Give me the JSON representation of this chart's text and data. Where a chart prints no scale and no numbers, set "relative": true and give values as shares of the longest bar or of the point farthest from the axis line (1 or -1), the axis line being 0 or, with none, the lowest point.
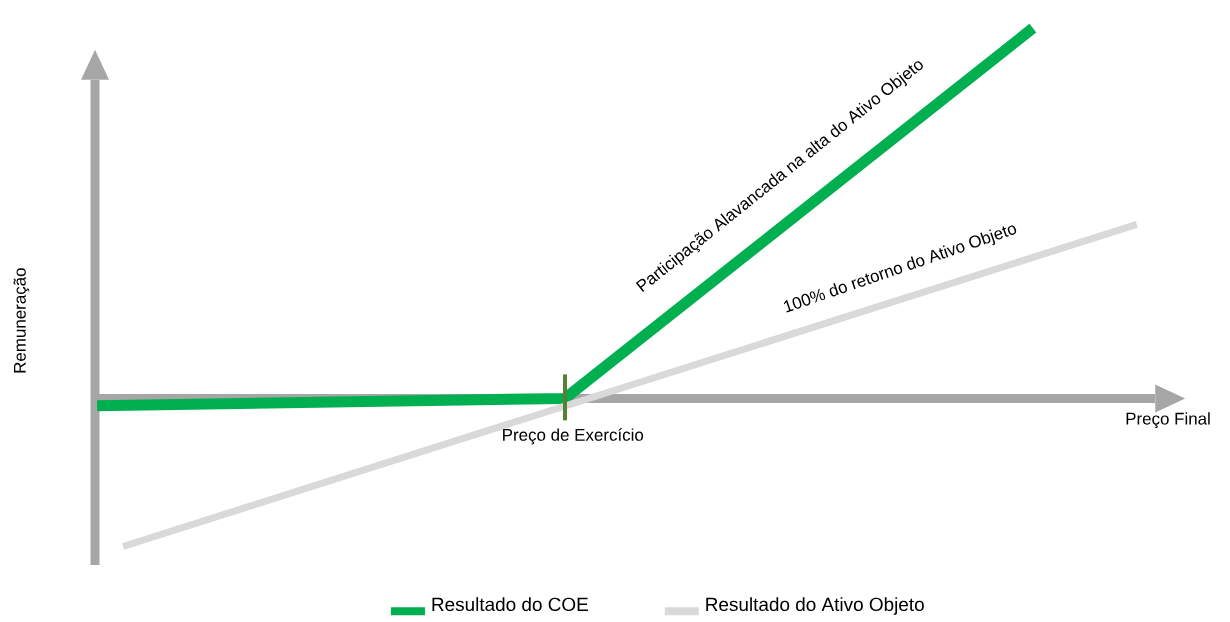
{
  "chart_data": {
    "type": "line",
    "relative": true,
    "xlabel": "Preço Final",
    "ylabel": "Remuneração",
    "categories": [
      null,
      null,
      null,
      null,
      null,
      null,
      null,
      null,
      null,
      null,
      null,
      null,
      null,
      null,
      null,
      null,
      null,
      null,
      null,
      null,
      null,
      null,
      null,
      null,
      null,
      null,
      null,
      null,
      null,
      null,
      null,
      null,
      null,
      null,
      null,
      null,
      null,
      null,
      null,
      null,
      null
    ],
    "series": [
      {
        "name": "Resultado do COE",
        "color": "#00b050",
        "values": [
          -0.02,
          null,
          null,
          null,
          null,
          null,
          null,
          null,
          null,
          null,
          null,
          null,
          null,
          null,
          null,
          null,
          null,
          null,
          0,
          null,
          null,
          null,
          null,
          null,
          null,
          null,
          null,
          null,
          null,
          null,
          null,
          null,
          null,
          null,
          null,
          null,
          1,
          null,
          null,
          null,
          null
        ]
      },
      {
        "name": "Resultado do Ativo Objeto",
        "color": "#d9d9d9",
        "values": [
          null,
          -0.4,
          null,
          null,
          null,
          null,
          null,
          null,
          null,
          null,
          null,
          null,
          null,
          null,
          null,
          null,
          null,
          null,
          null,
          null,
          null,
          null,
          null,
          null,
          null,
          null,
          null,
          null,
          null,
          null,
          null,
          null,
          null,
          null,
          null,
          null,
          null,
          null,
          null,
          null,
          0.47
        ]
      }
    ],
    "annotations": [
      "Participação Alavancada na alta do Ativo Objeto",
      "100% do retorno do Ativo Objeto",
      "Preço de Exercício"
    ],
    "legend": "bottom",
    "marker": "none",
    "line_style": "solid"
  }
}
